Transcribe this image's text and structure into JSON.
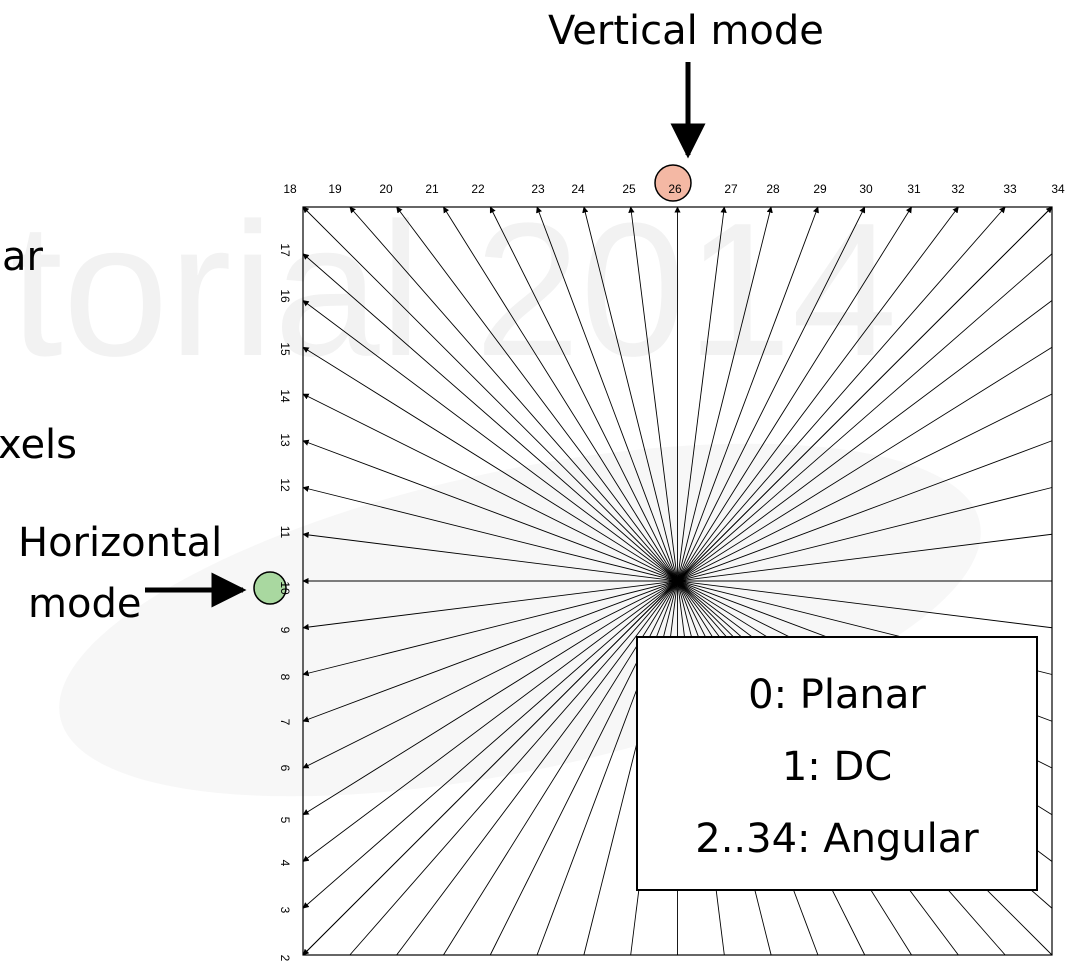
{
  "vertical_label": "Vertical mode",
  "horizontal_label": {
    "line1": "Horizontal",
    "line2": "mode"
  },
  "fragments": [
    "ar",
    "xels"
  ],
  "watermark": "torial 2014",
  "top_modes": [
    18,
    19,
    20,
    21,
    22,
    23,
    24,
    25,
    26,
    27,
    28,
    29,
    30,
    31,
    32,
    33,
    34
  ],
  "left_modes": [
    17,
    16,
    15,
    14,
    13,
    12,
    11,
    10,
    9,
    8,
    7,
    6,
    5,
    4,
    3,
    2
  ],
  "legend": [
    "0: Planar",
    "1: DC",
    "2..34: Angular"
  ]
}
